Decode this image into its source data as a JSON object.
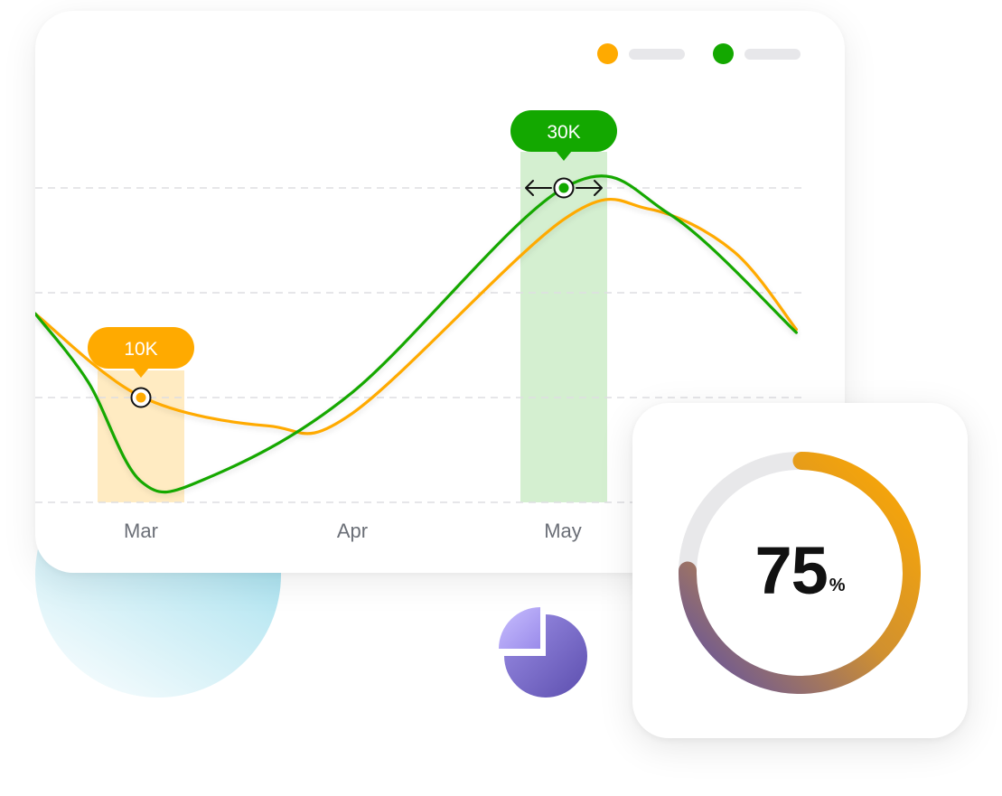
{
  "colors": {
    "orange": "#FFAA00",
    "green": "#13A800",
    "orange_band": "#FFEBC2",
    "green_band": "#D4EFD0",
    "gauge_track": "#E8E8EA",
    "gauge_purple": "#5B4EA8",
    "pie_purple": "#7A6BD0",
    "pie_light": "#B9AEF5"
  },
  "legend": [
    {
      "color": "#FFAA00",
      "icon": "orange-dot-icon"
    },
    {
      "color": "#13A800",
      "icon": "green-dot-icon"
    }
  ],
  "chart_data": {
    "type": "line",
    "categories": [
      "Mar",
      "Apr",
      "May"
    ],
    "series": [
      {
        "color": "#FFAA00",
        "points": [
          [
            -0.5,
            18
          ],
          [
            0,
            10.1
          ],
          [
            0.6,
            7.3
          ],
          [
            1.0,
            8.5
          ],
          [
            2.0,
            27.0
          ],
          [
            2.4,
            28.0
          ],
          [
            2.8,
            24.0
          ],
          [
            3.1,
            16.5
          ]
        ]
      },
      {
        "color": "#13A800",
        "points": [
          [
            -0.5,
            18
          ],
          [
            -0.25,
            11.5
          ],
          [
            0,
            2.0
          ],
          [
            0.3,
            2.2
          ],
          [
            1.0,
            10.5
          ],
          [
            2.0,
            30.0
          ],
          [
            2.5,
            27.5
          ],
          [
            3.1,
            16.2
          ]
        ]
      }
    ],
    "highlights": [
      {
        "category": "Mar",
        "series_color": "#FFAA00",
        "value": 10,
        "label": "10K"
      },
      {
        "category": "May",
        "series_color": "#13A800",
        "value": 30,
        "label": "30K"
      }
    ],
    "ylim": [
      0,
      30
    ],
    "grid": true,
    "legend": "top-right"
  },
  "gauge": {
    "value": "75",
    "unit": "%",
    "fraction": 0.75
  },
  "icons": {
    "pie": "pie-chart-icon"
  }
}
